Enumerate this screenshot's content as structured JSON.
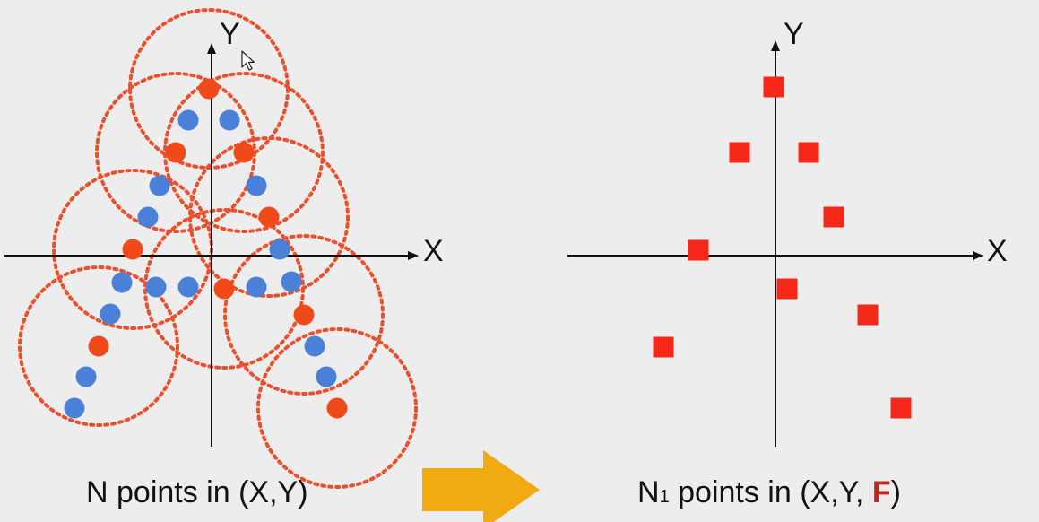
{
  "colors": {
    "background": "#ededed",
    "axis": "#111111",
    "blue_point": "#4a80d8",
    "orange_point": "#f04a1b",
    "circle": "#e8512e",
    "square": "#f5281a",
    "arrow": "#f2aa12",
    "accent_text": "#c0261b"
  },
  "left_panel": {
    "x_axis_label": "X",
    "y_axis_label": "Y",
    "caption": "N points in (X,Y)"
  },
  "right_panel": {
    "x_axis_label": "X",
    "y_axis_label": "Y",
    "caption": {
      "prefix": "N",
      "subscript": "1",
      "middle": " points in (X,Y, ",
      "highlight": "F",
      "suffix": ")"
    }
  },
  "arrow": {
    "icon": "right-arrow-icon"
  },
  "cursor": {
    "icon": "mouse-pointer-icon"
  }
}
